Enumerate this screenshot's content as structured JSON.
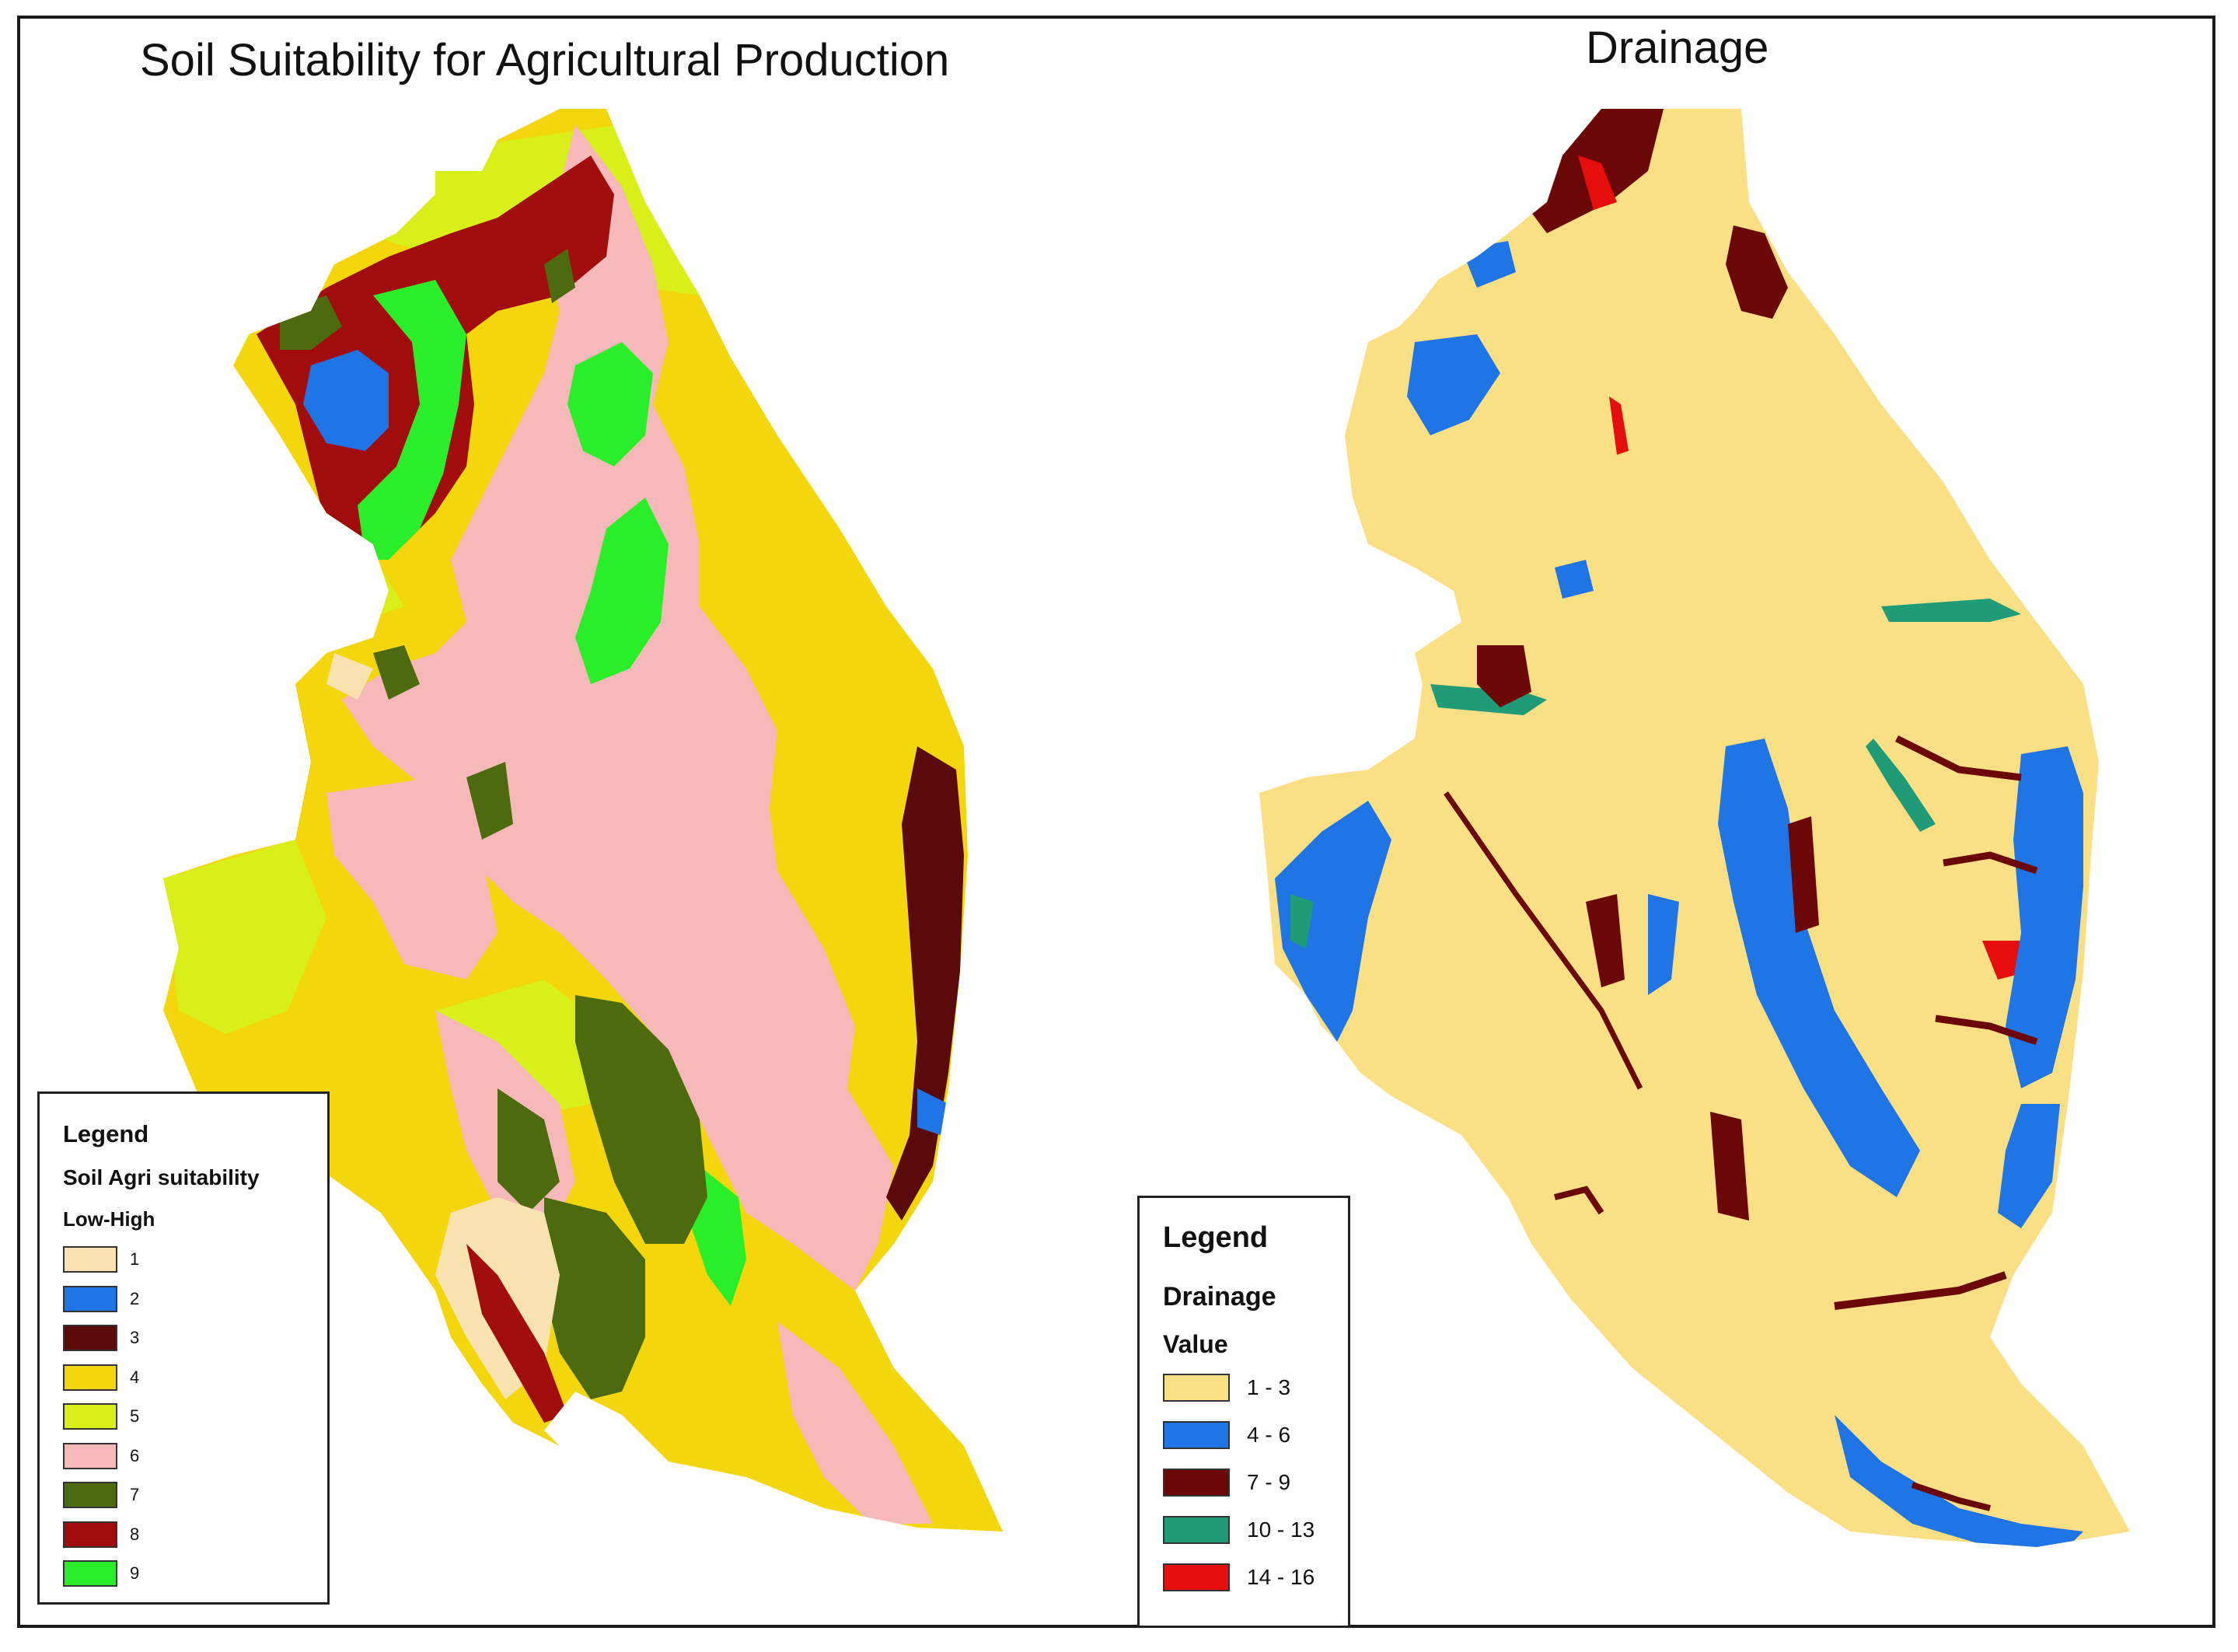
{
  "left_map": {
    "title": "Soil Suitability for Agricultural Production",
    "legend": {
      "heading": "Legend",
      "layer": "Soil Agri suitability",
      "scale": "Low-High",
      "classes": [
        {
          "label": "1",
          "color": "#f8e3b0"
        },
        {
          "label": "2",
          "color": "#1f74e6"
        },
        {
          "label": "3",
          "color": "#5a0a0a"
        },
        {
          "label": "4",
          "color": "#f3d60b"
        },
        {
          "label": "5",
          "color": "#d9ef1a"
        },
        {
          "label": "6",
          "color": "#f6b8b8"
        },
        {
          "label": "7",
          "color": "#4d6b0e"
        },
        {
          "label": "8",
          "color": "#a10d0d"
        },
        {
          "label": "9",
          "color": "#2bee2b"
        }
      ]
    }
  },
  "right_map": {
    "title": "Drainage",
    "legend": {
      "heading": "Legend",
      "layer": "Drainage",
      "field": "Value",
      "classes": [
        {
          "label": "1 - 3",
          "color": "#fbdf85"
        },
        {
          "label": "4 - 6",
          "color": "#1f74e6"
        },
        {
          "label": "7 - 9",
          "color": "#6b0707"
        },
        {
          "label": "10 - 13",
          "color": "#1f9b78"
        },
        {
          "label": "14 - 16",
          "color": "#e60d0d"
        }
      ]
    }
  }
}
